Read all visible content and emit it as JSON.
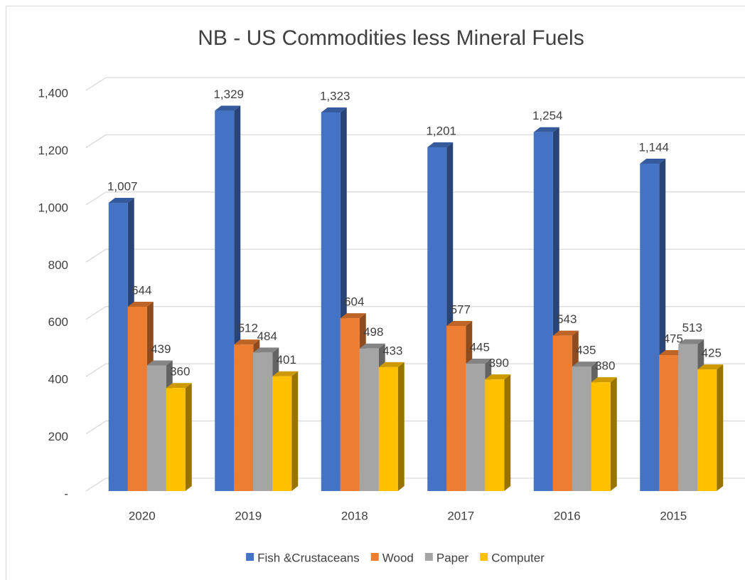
{
  "chart_data": {
    "type": "bar3d",
    "title": "NB - US Commodities less Mineral Fuels",
    "categories": [
      "2020",
      "2019",
      "2018",
      "2017",
      "2016",
      "2015"
    ],
    "series": [
      {
        "name": "Fish &Crustaceans",
        "color": "#4472c4",
        "values": [
          1007,
          1329,
          1323,
          1201,
          1254,
          1144
        ],
        "value_labels": [
          "1,007",
          "1,329",
          "1,323",
          "1,201",
          "1,254",
          "1,144"
        ]
      },
      {
        "name": "Wood",
        "color": "#ed7d31",
        "values": [
          644,
          512,
          604,
          577,
          543,
          475
        ]
      },
      {
        "name": "Paper",
        "color": "#a5a5a5",
        "values": [
          439,
          484,
          498,
          445,
          435,
          513
        ]
      },
      {
        "name": "Computer",
        "color": "#ffc000",
        "values": [
          360,
          401,
          433,
          390,
          380,
          425
        ]
      }
    ],
    "ylim": [
      0,
      1400
    ],
    "yticks": [
      {
        "value": 0,
        "label": "-"
      },
      200,
      400,
      600,
      800,
      {
        "value": 1000,
        "label": "1,000"
      },
      {
        "value": 1200,
        "label": "1,200"
      },
      {
        "value": 1400,
        "label": "1,400"
      }
    ],
    "grid": true,
    "legend": "bottom"
  }
}
